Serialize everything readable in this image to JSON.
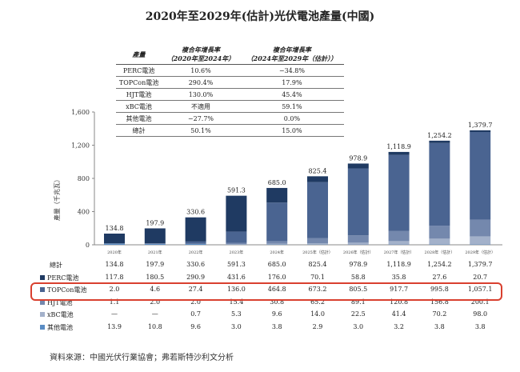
{
  "title": "2020年至2029年(估計)光伏電池產量(中國)",
  "cagr_table": {
    "headers": [
      "產量",
      "複合年增長率\n（2020年至2024年）",
      "複合年增長率\n（2024年至2029年（估計））"
    ],
    "rows": [
      [
        "PERC電池",
        "10.6%",
        "−34.8%"
      ],
      [
        "TOPCon電池",
        "290.4%",
        "17.9%"
      ],
      [
        "HJT電池",
        "130.0%",
        "45.4%"
      ],
      [
        "xBC電池",
        "不適用",
        "59.1%"
      ],
      [
        "其他電池",
        "−27.7%",
        "0.0%"
      ],
      [
        "總計",
        "50.1%",
        "15.0%"
      ]
    ]
  },
  "chart_data": {
    "type": "bar",
    "stacked": true,
    "ylabel": "產量（千兆瓦）",
    "ylim": [
      0,
      1600
    ],
    "yticks": [
      "0",
      "400",
      "800",
      "1,200",
      "1,600"
    ],
    "grid": false,
    "categories": [
      "2020年",
      "2021年",
      "2022年",
      "2023年",
      "2024年",
      "2025年（估計）",
      "2026年（估計）",
      "2027年（估計）",
      "2028年（估計）",
      "2029年（估計）"
    ],
    "totals": [
      134.8,
      197.9,
      330.6,
      591.3,
      685.0,
      825.4,
      978.9,
      1118.9,
      1254.2,
      1379.7
    ],
    "total_labels": [
      "134.8",
      "197.9",
      "330.6",
      "591.3",
      "685.0",
      "825.4",
      "978.9",
      "1,118.9",
      "1,254.2",
      "1,379.7"
    ],
    "total_row_label": "總計",
    "series": [
      {
        "name": "PERC電池",
        "color": "#1f3a62",
        "values": [
          117.8,
          180.5,
          290.9,
          431.6,
          176.0,
          70.1,
          58.8,
          35.8,
          27.6,
          20.7
        ],
        "labels": [
          "117.8",
          "180.5",
          "290.9",
          "431.6",
          "176.0",
          "70.1",
          "58.8",
          "35.8",
          "27.6",
          "20.7"
        ]
      },
      {
        "name": "TOPCon電池",
        "color": "#4a6491",
        "values": [
          2.0,
          4.6,
          27.4,
          136.0,
          464.8,
          673.2,
          805.5,
          917.7,
          995.8,
          1057.1
        ],
        "labels": [
          "2.0",
          "4.6",
          "27.4",
          "136.0",
          "464.8",
          "673.2",
          "805.5",
          "917.7",
          "995.8",
          "1,057.1"
        ],
        "highlighted": true
      },
      {
        "name": "HJT電池",
        "color": "#7488ad",
        "values": [
          1.1,
          2.0,
          2.0,
          15.4,
          30.8,
          65.2,
          89.1,
          120.8,
          156.8,
          200.1
        ],
        "labels": [
          "1.1",
          "2.0",
          "2.0",
          "15.4",
          "30.8",
          "65.2",
          "89.1",
          "120.8",
          "156.8",
          "200.1"
        ]
      },
      {
        "name": "xBC電池",
        "color": "#a3b1ca",
        "values": [
          null,
          null,
          0.7,
          5.3,
          9.6,
          14.0,
          22.5,
          41.4,
          70.2,
          98.0
        ],
        "labels": [
          "—",
          "—",
          "0.7",
          "5.3",
          "9.6",
          "14.0",
          "22.5",
          "41.4",
          "70.2",
          "98.0"
        ]
      },
      {
        "name": "其他電池",
        "color": "#5a8cc4",
        "values": [
          13.9,
          10.8,
          9.6,
          3.0,
          3.8,
          2.9,
          3.0,
          3.2,
          3.8,
          3.8
        ],
        "labels": [
          "13.9",
          "10.8",
          "9.6",
          "3.0",
          "3.8",
          "2.9",
          "3.0",
          "3.2",
          "3.8",
          "3.8"
        ]
      }
    ]
  },
  "source": "資料來源：中國光伏行業協會；弗若斯特沙利文分析"
}
